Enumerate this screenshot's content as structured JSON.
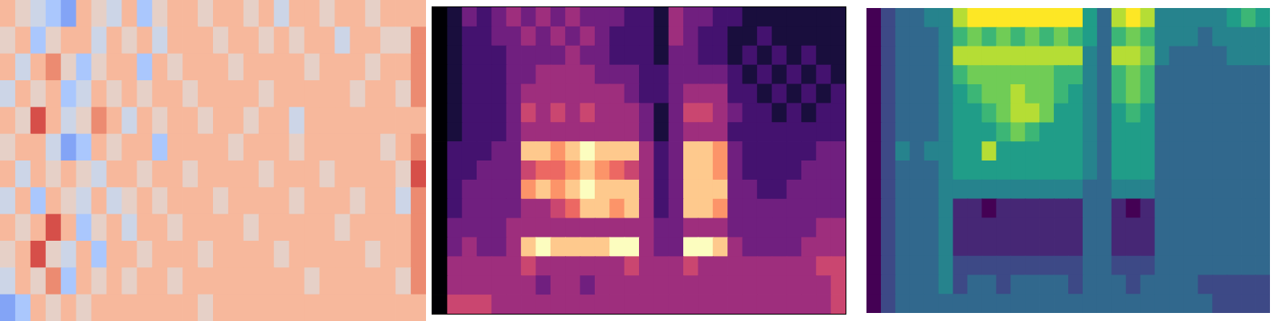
{
  "chart_data": [
    {
      "type": "heatmap",
      "color": "coolwarm",
      "tick_labels": false,
      "color_range": [
        0,
        9
      ],
      "cells": [
        [
          6,
          5,
          4,
          3,
          2,
          6,
          5,
          4,
          6,
          3,
          5,
          6,
          6,
          5,
          6,
          6,
          5,
          6,
          4,
          6,
          6,
          5,
          6,
          6,
          5,
          6,
          6,
          6
        ],
        [
          5,
          6,
          3,
          5,
          6,
          6,
          4,
          6,
          5,
          6,
          4,
          6,
          6,
          6,
          5,
          6,
          6,
          5,
          6,
          5,
          6,
          6,
          4,
          6,
          6,
          5,
          5,
          7
        ],
        [
          6,
          4,
          6,
          7,
          5,
          3,
          5,
          6,
          6,
          3,
          6,
          5,
          6,
          6,
          6,
          5,
          6,
          6,
          6,
          6,
          5,
          6,
          6,
          6,
          5,
          6,
          6,
          7
        ],
        [
          4,
          6,
          5,
          6,
          3,
          4,
          6,
          5,
          6,
          5,
          6,
          6,
          5,
          6,
          6,
          6,
          6,
          5,
          6,
          6,
          6,
          6,
          6,
          5,
          6,
          6,
          5,
          7
        ],
        [
          6,
          5,
          8,
          6,
          4,
          5,
          7,
          6,
          4,
          6,
          5,
          6,
          6,
          5,
          6,
          6,
          5,
          6,
          6,
          4,
          6,
          6,
          6,
          6,
          6,
          6,
          6,
          6
        ],
        [
          5,
          6,
          6,
          4,
          2,
          3,
          6,
          5,
          6,
          6,
          3,
          6,
          6,
          6,
          6,
          5,
          6,
          6,
          6,
          5,
          6,
          6,
          6,
          6,
          6,
          5,
          6,
          7
        ],
        [
          6,
          4,
          6,
          5,
          6,
          5,
          4,
          6,
          6,
          5,
          6,
          6,
          5,
          6,
          6,
          6,
          6,
          5,
          6,
          6,
          6,
          5,
          6,
          6,
          6,
          6,
          5,
          8
        ],
        [
          4,
          6,
          3,
          6,
          5,
          4,
          6,
          4,
          5,
          6,
          5,
          6,
          6,
          6,
          5,
          6,
          6,
          6,
          6,
          5,
          6,
          6,
          6,
          5,
          6,
          6,
          4,
          7
        ],
        [
          6,
          5,
          6,
          8,
          6,
          3,
          5,
          6,
          4,
          6,
          6,
          5,
          6,
          6,
          6,
          6,
          5,
          6,
          6,
          6,
          6,
          6,
          5,
          6,
          6,
          6,
          6,
          7
        ],
        [
          5,
          6,
          8,
          5,
          4,
          6,
          3,
          6,
          6,
          5,
          6,
          6,
          6,
          5,
          6,
          6,
          6,
          6,
          5,
          6,
          6,
          6,
          6,
          6,
          5,
          6,
          6,
          7
        ],
        [
          4,
          6,
          5,
          7,
          3,
          6,
          5,
          6,
          5,
          6,
          6,
          5,
          6,
          6,
          6,
          6,
          6,
          6,
          6,
          6,
          5,
          6,
          6,
          6,
          6,
          6,
          5,
          7
        ],
        [
          2,
          3,
          6,
          5,
          6,
          5,
          6,
          6,
          6,
          6,
          6,
          6,
          6,
          5,
          6,
          6,
          6,
          6,
          6,
          6,
          6,
          6,
          6,
          6,
          6,
          6,
          6,
          6
        ]
      ]
    },
    {
      "type": "heatmap",
      "color": "magma",
      "tick_labels": false,
      "color_range": [
        0,
        9
      ],
      "cells": [
        [
          0,
          1,
          3,
          2,
          3,
          4,
          3,
          4,
          3,
          4,
          3,
          3,
          3,
          2,
          2,
          1,
          4,
          3,
          3,
          2,
          2,
          1,
          1,
          1,
          1,
          1,
          1,
          1
        ],
        [
          0,
          1,
          2,
          2,
          3,
          3,
          4,
          3,
          4,
          3,
          4,
          3,
          2,
          2,
          2,
          1,
          4,
          3,
          2,
          2,
          1,
          1,
          2,
          1,
          1,
          1,
          1,
          1
        ],
        [
          0,
          1,
          2,
          2,
          2,
          3,
          3,
          3,
          3,
          4,
          3,
          3,
          2,
          2,
          2,
          1,
          3,
          3,
          2,
          2,
          1,
          2,
          1,
          2,
          1,
          2,
          1,
          1
        ],
        [
          0,
          1,
          2,
          2,
          2,
          3,
          3,
          4,
          4,
          4,
          4,
          3,
          3,
          3,
          2,
          2,
          3,
          3,
          3,
          3,
          2,
          1,
          2,
          1,
          2,
          1,
          2,
          1
        ],
        [
          0,
          1,
          2,
          2,
          2,
          3,
          4,
          4,
          4,
          4,
          4,
          4,
          4,
          3,
          2,
          2,
          3,
          4,
          4,
          4,
          2,
          2,
          1,
          2,
          1,
          2,
          1,
          2
        ],
        [
          0,
          1,
          2,
          2,
          2,
          3,
          5,
          4,
          5,
          4,
          5,
          4,
          4,
          4,
          3,
          1,
          3,
          5,
          5,
          4,
          3,
          2,
          2,
          1,
          2,
          1,
          2,
          2
        ],
        [
          0,
          1,
          2,
          2,
          2,
          3,
          4,
          4,
          4,
          4,
          4,
          4,
          4,
          4,
          3,
          1,
          3,
          4,
          4,
          4,
          2,
          2,
          2,
          2,
          2,
          2,
          2,
          2
        ],
        [
          0,
          2,
          2,
          2,
          3,
          3,
          8,
          8,
          7,
          8,
          9,
          8,
          8,
          8,
          4,
          2,
          3,
          8,
          8,
          7,
          3,
          2,
          2,
          2,
          2,
          2,
          3,
          3
        ],
        [
          0,
          2,
          2,
          3,
          3,
          3,
          5,
          6,
          6,
          7,
          8,
          7,
          6,
          5,
          4,
          2,
          3,
          8,
          8,
          7,
          3,
          2,
          2,
          2,
          2,
          3,
          3,
          3
        ],
        [
          0,
          2,
          3,
          3,
          3,
          3,
          7,
          8,
          7,
          8,
          9,
          8,
          8,
          8,
          4,
          2,
          3,
          8,
          8,
          8,
          3,
          3,
          2,
          2,
          3,
          3,
          3,
          3
        ],
        [
          0,
          2,
          3,
          3,
          3,
          3,
          4,
          4,
          5,
          6,
          8,
          8,
          7,
          8,
          4,
          2,
          3,
          8,
          8,
          7,
          3,
          3,
          3,
          3,
          3,
          3,
          3,
          3
        ],
        [
          0,
          3,
          3,
          3,
          3,
          4,
          4,
          4,
          4,
          4,
          4,
          4,
          4,
          4,
          4,
          3,
          3,
          4,
          4,
          4,
          3,
          3,
          3,
          3,
          3,
          3,
          4,
          4
        ],
        [
          0,
          3,
          4,
          3,
          3,
          4,
          8,
          9,
          8,
          8,
          8,
          8,
          9,
          9,
          4,
          3,
          3,
          9,
          9,
          8,
          4,
          3,
          3,
          3,
          3,
          4,
          4,
          4
        ],
        [
          0,
          4,
          4,
          4,
          4,
          4,
          5,
          4,
          4,
          4,
          4,
          4,
          4,
          5,
          4,
          4,
          4,
          5,
          4,
          4,
          4,
          4,
          4,
          4,
          4,
          4,
          5,
          5
        ],
        [
          0,
          4,
          4,
          4,
          4,
          4,
          4,
          3,
          4,
          4,
          3,
          4,
          4,
          4,
          4,
          4,
          4,
          4,
          4,
          4,
          4,
          4,
          4,
          4,
          4,
          4,
          4,
          5
        ],
        [
          0,
          5,
          5,
          5,
          4,
          4,
          4,
          4,
          4,
          4,
          4,
          4,
          4,
          4,
          4,
          4,
          4,
          4,
          4,
          4,
          4,
          4,
          4,
          4,
          4,
          4,
          4,
          5
        ]
      ]
    },
    {
      "type": "heatmap",
      "color": "viridis",
      "tick_labels": false,
      "color_range": [
        0,
        9
      ],
      "cells": [
        [
          0,
          2,
          3,
          3,
          4,
          4,
          8,
          9,
          9,
          9,
          9,
          9,
          9,
          9,
          9,
          5,
          3,
          8,
          9,
          8,
          4,
          4,
          4,
          4,
          4,
          5,
          6,
          5
        ],
        [
          0,
          2,
          3,
          3,
          3,
          4,
          6,
          7,
          6,
          7,
          6,
          7,
          6,
          7,
          6,
          5,
          3,
          6,
          7,
          6,
          4,
          4,
          4,
          3,
          4,
          4,
          4,
          4
        ],
        [
          0,
          2,
          3,
          3,
          3,
          4,
          8,
          8,
          8,
          8,
          8,
          8,
          8,
          8,
          8,
          4,
          3,
          8,
          8,
          7,
          4,
          3,
          3,
          3,
          3,
          4,
          4,
          4
        ],
        [
          0,
          2,
          3,
          3,
          3,
          4,
          6,
          7,
          7,
          7,
          7,
          7,
          7,
          6,
          6,
          4,
          3,
          6,
          7,
          6,
          3,
          3,
          3,
          3,
          3,
          3,
          3,
          3
        ],
        [
          0,
          2,
          3,
          3,
          3,
          4,
          5,
          6,
          7,
          7,
          8,
          7,
          7,
          6,
          5,
          4,
          3,
          6,
          7,
          6,
          3,
          3,
          3,
          3,
          3,
          3,
          3,
          3
        ],
        [
          0,
          2,
          3,
          3,
          3,
          4,
          5,
          5,
          6,
          7,
          8,
          8,
          7,
          5,
          5,
          4,
          3,
          5,
          6,
          5,
          3,
          3,
          3,
          3,
          3,
          3,
          3,
          3
        ],
        [
          0,
          2,
          3,
          3,
          3,
          4,
          5,
          5,
          5,
          6,
          7,
          6,
          5,
          5,
          5,
          4,
          3,
          5,
          5,
          5,
          3,
          3,
          3,
          3,
          3,
          3,
          3,
          3
        ],
        [
          0,
          2,
          4,
          3,
          4,
          4,
          5,
          5,
          8,
          5,
          5,
          5,
          5,
          5,
          5,
          4,
          3,
          5,
          5,
          5,
          3,
          3,
          3,
          3,
          3,
          3,
          3,
          3
        ],
        [
          0,
          2,
          3,
          3,
          3,
          4,
          5,
          5,
          5,
          5,
          5,
          5,
          5,
          5,
          5,
          4,
          3,
          5,
          5,
          5,
          3,
          3,
          3,
          3,
          3,
          3,
          3,
          3
        ],
        [
          0,
          2,
          3,
          3,
          3,
          4,
          4,
          4,
          4,
          4,
          4,
          4,
          4,
          4,
          4,
          3,
          3,
          4,
          4,
          4,
          3,
          3,
          3,
          3,
          3,
          3,
          3,
          3
        ],
        [
          0,
          2,
          3,
          3,
          3,
          4,
          1,
          1,
          0,
          1,
          1,
          1,
          1,
          1,
          1,
          3,
          3,
          1,
          0,
          1,
          3,
          3,
          3,
          3,
          3,
          3,
          3,
          3
        ],
        [
          0,
          2,
          3,
          3,
          3,
          4,
          1,
          1,
          1,
          1,
          1,
          1,
          1,
          1,
          1,
          3,
          3,
          1,
          1,
          1,
          3,
          3,
          3,
          3,
          3,
          3,
          3,
          3
        ],
        [
          0,
          2,
          3,
          3,
          3,
          4,
          1,
          1,
          1,
          1,
          1,
          1,
          1,
          1,
          1,
          3,
          3,
          1,
          1,
          1,
          3,
          3,
          3,
          3,
          3,
          3,
          3,
          3
        ],
        [
          0,
          2,
          3,
          3,
          3,
          4,
          2,
          2,
          2,
          2,
          2,
          2,
          2,
          2,
          2,
          3,
          3,
          2,
          2,
          2,
          3,
          3,
          3,
          3,
          3,
          3,
          3,
          3
        ],
        [
          0,
          2,
          3,
          3,
          3,
          4,
          2,
          3,
          3,
          2,
          3,
          3,
          3,
          3,
          2,
          3,
          3,
          3,
          2,
          3,
          3,
          3,
          3,
          2,
          2,
          2,
          2,
          2
        ],
        [
          0,
          2,
          3,
          3,
          3,
          3,
          3,
          3,
          3,
          3,
          3,
          3,
          3,
          3,
          3,
          3,
          3,
          3,
          3,
          3,
          3,
          3,
          3,
          3,
          2,
          2,
          2,
          2
        ]
      ]
    }
  ]
}
